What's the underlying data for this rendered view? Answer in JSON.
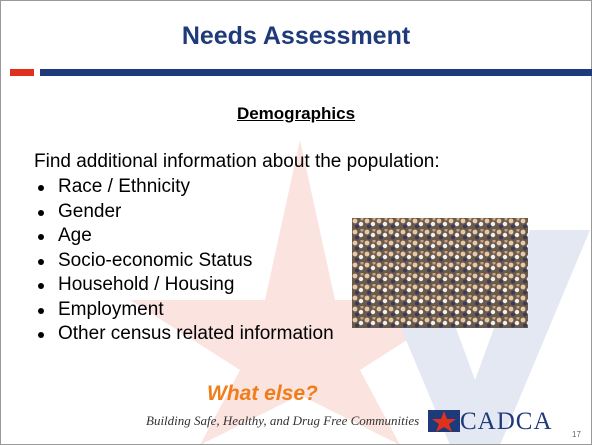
{
  "header": {
    "title": "Needs Assessment"
  },
  "subtitle": "Demographics",
  "intro": "Find additional information about the population:",
  "bullets": [
    "Race / Ethnicity",
    "Gender",
    "Age",
    "Socio-economic Status",
    "Household / Housing",
    "Employment",
    "Other census related information"
  ],
  "callout": "What else?",
  "footer": {
    "tagline": "Building Safe, Healthy, and Drug Free Communities",
    "logo": "CADCA",
    "page": "17"
  }
}
